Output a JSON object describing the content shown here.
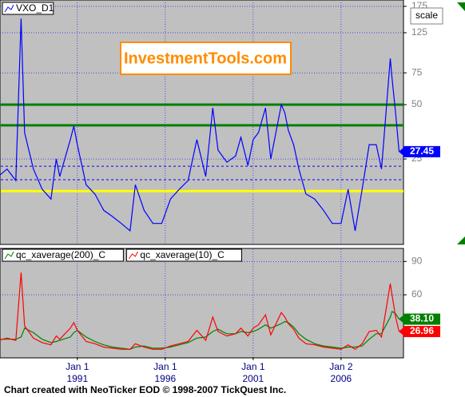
{
  "chart_data": [
    {
      "type": "line",
      "log_scale": true,
      "grid": true,
      "x": [
        1986.5,
        1987.0,
        1987.5,
        1987.8,
        1988.0,
        1988.5,
        1989.0,
        1989.5,
        1989.8,
        1990.0,
        1990.6,
        1990.8,
        1991.0,
        1991.5,
        1992.0,
        1992.5,
        1993.0,
        1993.5,
        1994.0,
        1994.3,
        1994.8,
        1995.3,
        1995.8,
        1996.3,
        1996.8,
        1997.3,
        1997.8,
        1998.3,
        1998.7,
        1999.0,
        1999.5,
        2000.0,
        2000.3,
        2000.7,
        2001.0,
        2001.3,
        2001.7,
        2002.0,
        2002.6,
        2002.8,
        2003.0,
        2003.3,
        2003.6,
        2004.0,
        2004.5,
        2005.0,
        2005.5,
        2006.0,
        2006.4,
        2006.8,
        2007.2,
        2007.6,
        2008.0,
        2008.3,
        2008.8,
        2008.9,
        2009.1,
        2009.3
      ],
      "series": [
        {
          "name": "VXO_D1",
          "color": "#0000ff",
          "last_label": "27.45",
          "values": [
            20,
            22,
            19,
            150,
            35,
            22,
            17,
            15,
            25,
            20,
            32,
            38,
            30,
            18,
            16,
            13,
            12,
            11,
            10,
            18,
            13,
            11,
            11,
            15,
            17,
            19,
            32,
            20,
            48,
            28,
            24,
            26,
            33,
            23,
            32,
            35,
            48,
            25,
            50,
            45,
            36,
            30,
            22,
            16,
            15,
            13,
            11,
            11,
            17,
            10,
            17,
            30,
            30,
            22,
            90,
            70,
            45,
            27.45
          ]
        }
      ],
      "hlines": [
        {
          "value": 50,
          "color": "#008000"
        },
        {
          "value": 38.4,
          "color": "#008000"
        },
        {
          "value": 16.6,
          "color": "#ffff00"
        },
        {
          "value": 22.8,
          "color": "#0000ff",
          "dashed": true
        },
        {
          "value": 19.2,
          "color": "#0000ff",
          "dashed": true
        }
      ],
      "xlim": [
        1986.6,
        2009.55
      ],
      "ylim": [
        8.5,
        184
      ],
      "yticks": [
        25,
        50,
        75,
        125,
        175
      ],
      "annotations": {
        "banner": "InvestmentTools.com",
        "button": "scale"
      }
    },
    {
      "type": "line",
      "grid": true,
      "x": [
        1986.5,
        1987.0,
        1987.5,
        1987.8,
        1988.0,
        1988.5,
        1989.0,
        1989.5,
        1989.8,
        1990.0,
        1990.6,
        1990.8,
        1991.0,
        1991.5,
        1992.0,
        1992.5,
        1993.0,
        1993.5,
        1994.0,
        1994.3,
        1994.8,
        1995.3,
        1995.8,
        1996.3,
        1996.8,
        1997.3,
        1997.8,
        1998.3,
        1998.7,
        1999.0,
        1999.5,
        2000.0,
        2000.3,
        2000.7,
        2001.0,
        2001.3,
        2001.7,
        2002.0,
        2002.6,
        2002.8,
        2003.0,
        2003.3,
        2003.6,
        2004.0,
        2004.5,
        2005.0,
        2005.5,
        2006.0,
        2006.4,
        2006.8,
        2007.2,
        2007.6,
        2008.0,
        2008.3,
        2008.8,
        2008.9,
        2009.1,
        2009.3
      ],
      "series": [
        {
          "name": "qc_xaverage(200)_C",
          "color": "#008000",
          "last_label": "38.10",
          "values": [
            20,
            20,
            20,
            22,
            30,
            26,
            20,
            17,
            18,
            19,
            22,
            26,
            28,
            22,
            18,
            15,
            13,
            12,
            11,
            13,
            14,
            12,
            12,
            13,
            15,
            17,
            21,
            22,
            27,
            29,
            25,
            25,
            27,
            26,
            27,
            29,
            33,
            30,
            34,
            36,
            35,
            31,
            25,
            20,
            16,
            14,
            13,
            12,
            13,
            13,
            14,
            20,
            25,
            25,
            40,
            45,
            43,
            38.1
          ]
        },
        {
          "name": "qc_xaverage(10)_C",
          "color": "#ff0000",
          "last_label": "26.96",
          "values": [
            19,
            21,
            19,
            80,
            32,
            21,
            17,
            15,
            23,
            20,
            30,
            35,
            28,
            18,
            16,
            13,
            12,
            11,
            11,
            16,
            13,
            11,
            11,
            14,
            16,
            18,
            28,
            19,
            40,
            27,
            23,
            25,
            30,
            23,
            30,
            33,
            42,
            24,
            44,
            40,
            34,
            29,
            21,
            16,
            15,
            13,
            12,
            11,
            15,
            11,
            16,
            27,
            28,
            22,
            70,
            60,
            40,
            26.96
          ]
        }
      ],
      "xlim": [
        1986.6,
        2009.55
      ],
      "ylim": [
        4,
        101
      ],
      "yticks": [
        60,
        90
      ],
      "xticks": [
        1991,
        1996,
        2001,
        2006
      ],
      "xtick_days": [
        "Jan 1",
        "Jan 1",
        "Jan 1",
        "Jan 2"
      ]
    }
  ],
  "footer": "Chart created with NeoTicker EOD © 1998-2007 TickQuest Inc."
}
